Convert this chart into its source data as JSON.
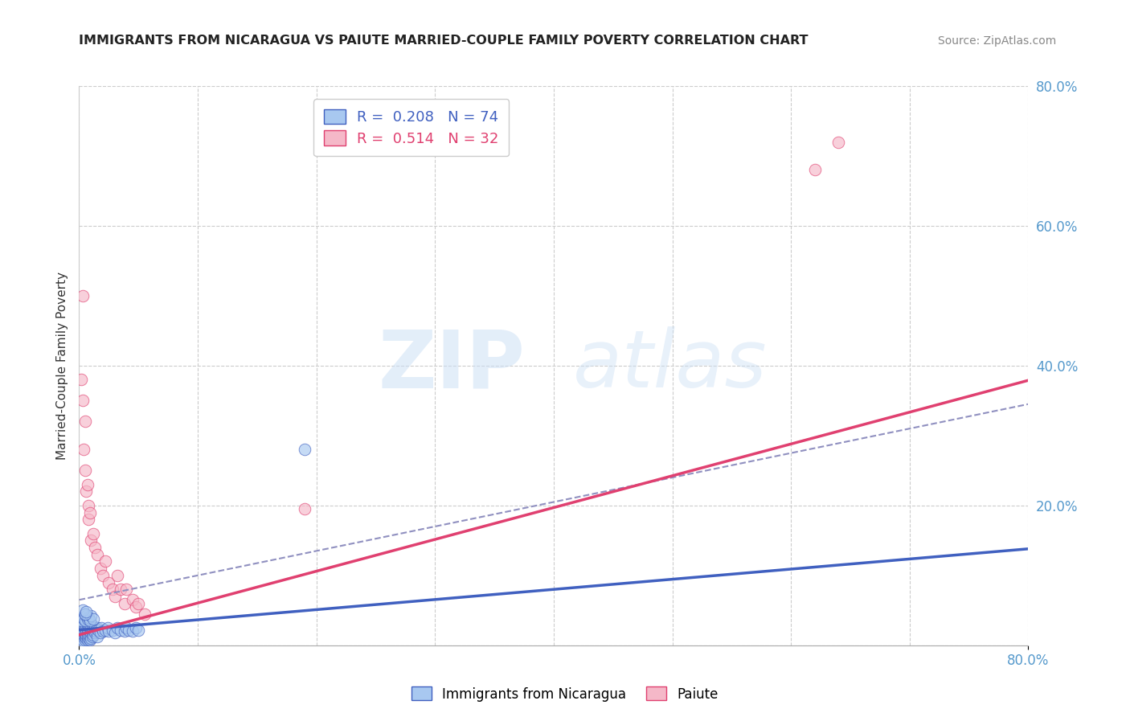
{
  "title": "IMMIGRANTS FROM NICARAGUA VS PAIUTE MARRIED-COUPLE FAMILY POVERTY CORRELATION CHART",
  "source": "Source: ZipAtlas.com",
  "ylabel": "Married-Couple Family Poverty",
  "xlim": [
    0.0,
    0.8
  ],
  "ylim": [
    0.0,
    0.8
  ],
  "ytick_labels_right": [
    "80.0%",
    "60.0%",
    "40.0%",
    "20.0%"
  ],
  "ytick_positions_right": [
    0.8,
    0.6,
    0.4,
    0.2
  ],
  "grid_color": "#cccccc",
  "background_color": "#ffffff",
  "blue_color": "#a8c8f0",
  "pink_color": "#f5b8c8",
  "blue_line_color": "#4060c0",
  "pink_line_color": "#e04070",
  "dashed_line_color": "#9090c0",
  "R_blue": 0.208,
  "N_blue": 74,
  "R_pink": 0.514,
  "N_pink": 32,
  "legend_text_blue": "R =  0.208   N = 74",
  "legend_text_pink": "R =  0.514   N = 32",
  "watermark_zip": "ZIP",
  "watermark_atlas": "atlas",
  "blue_intercept": 0.022,
  "blue_slope": 0.145,
  "pink_intercept": 0.015,
  "pink_slope": 0.455,
  "dashed_intercept": 0.065,
  "dashed_slope": 0.35,
  "blue_scatter_x": [
    0.002,
    0.003,
    0.003,
    0.003,
    0.003,
    0.004,
    0.004,
    0.004,
    0.004,
    0.005,
    0.005,
    0.005,
    0.005,
    0.006,
    0.006,
    0.006,
    0.006,
    0.007,
    0.007,
    0.007,
    0.007,
    0.007,
    0.008,
    0.008,
    0.008,
    0.008,
    0.009,
    0.009,
    0.009,
    0.009,
    0.01,
    0.01,
    0.01,
    0.011,
    0.011,
    0.011,
    0.012,
    0.012,
    0.013,
    0.013,
    0.014,
    0.015,
    0.015,
    0.016,
    0.018,
    0.019,
    0.02,
    0.022,
    0.024,
    0.025,
    0.028,
    0.03,
    0.032,
    0.035,
    0.038,
    0.04,
    0.042,
    0.045,
    0.048,
    0.05,
    0.002,
    0.003,
    0.004,
    0.005,
    0.006,
    0.007,
    0.008,
    0.009,
    0.01,
    0.012,
    0.003,
    0.005,
    0.006,
    0.19
  ],
  "blue_scatter_y": [
    0.01,
    0.008,
    0.012,
    0.015,
    0.02,
    0.005,
    0.018,
    0.022,
    0.03,
    0.008,
    0.012,
    0.018,
    0.025,
    0.01,
    0.015,
    0.02,
    0.028,
    0.008,
    0.012,
    0.018,
    0.022,
    0.03,
    0.01,
    0.015,
    0.022,
    0.028,
    0.008,
    0.015,
    0.02,
    0.025,
    0.01,
    0.018,
    0.025,
    0.012,
    0.02,
    0.028,
    0.015,
    0.022,
    0.018,
    0.025,
    0.02,
    0.012,
    0.025,
    0.022,
    0.018,
    0.025,
    0.02,
    0.022,
    0.025,
    0.02,
    0.022,
    0.018,
    0.025,
    0.022,
    0.02,
    0.025,
    0.022,
    0.02,
    0.025,
    0.022,
    0.035,
    0.04,
    0.038,
    0.035,
    0.042,
    0.038,
    0.04,
    0.035,
    0.042,
    0.038,
    0.05,
    0.045,
    0.048,
    0.28
  ],
  "pink_scatter_x": [
    0.002,
    0.003,
    0.003,
    0.004,
    0.005,
    0.005,
    0.006,
    0.007,
    0.008,
    0.008,
    0.009,
    0.01,
    0.012,
    0.013,
    0.015,
    0.018,
    0.02,
    0.022,
    0.025,
    0.028,
    0.03,
    0.032,
    0.035,
    0.038,
    0.04,
    0.045,
    0.048,
    0.05,
    0.055,
    0.19,
    0.62,
    0.64
  ],
  "pink_scatter_y": [
    0.38,
    0.5,
    0.35,
    0.28,
    0.32,
    0.25,
    0.22,
    0.23,
    0.18,
    0.2,
    0.19,
    0.15,
    0.16,
    0.14,
    0.13,
    0.11,
    0.1,
    0.12,
    0.09,
    0.08,
    0.07,
    0.1,
    0.08,
    0.06,
    0.08,
    0.065,
    0.055,
    0.06,
    0.045,
    0.195,
    0.68,
    0.72
  ]
}
